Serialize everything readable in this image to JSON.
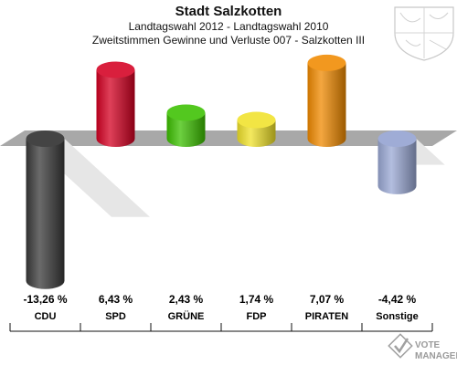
{
  "header": {
    "title": "Stadt Salzkotten",
    "subtitle": "Landtagswahl 2012 - Landtagswahl 2010",
    "subtitle2": "Zweitstimmen Gewinne und Verluste 007 - Salzkotten III"
  },
  "logo": {
    "line1": "VOTE",
    "line2": "MANAGER"
  },
  "chart_data": {
    "type": "bar",
    "title": "Stadt Salzkotten",
    "subtitle": "Landtagswahl 2012 - Landtagswahl 2010 / Zweitstimmen Gewinne und Verluste 007 - Salzkotten III",
    "categories": [
      "CDU",
      "SPD",
      "GRÜNE",
      "FDP",
      "PIRATEN",
      "Sonstige"
    ],
    "values": [
      -13.26,
      6.43,
      2.43,
      1.74,
      7.07,
      -4.42
    ],
    "value_labels": [
      "-13,26 %",
      "6,43 %",
      "2,43 %",
      "1,74 %",
      "7,07 %",
      "-4,42 %"
    ],
    "colors": [
      "#3a3a3a",
      "#d40022",
      "#3cc000",
      "#f0e22a",
      "#f08a00",
      "#9aa8d4"
    ],
    "xlabel": "",
    "ylabel": "",
    "grid": false,
    "legend": "none"
  }
}
